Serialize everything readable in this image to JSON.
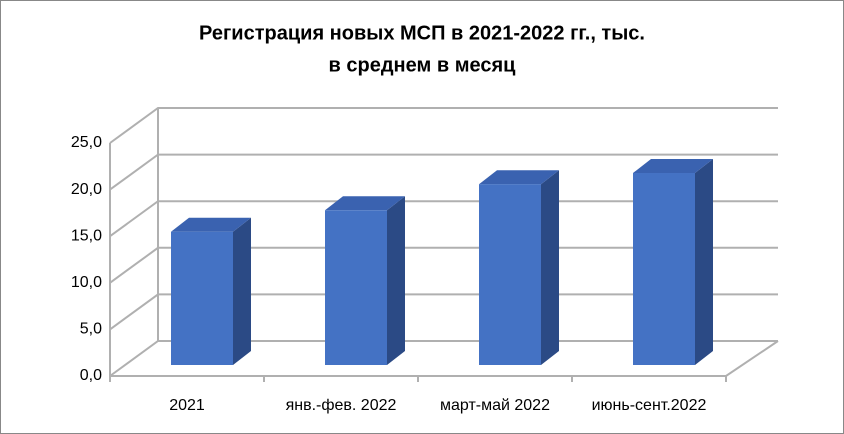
{
  "chart_data": {
    "type": "bar3d",
    "title": [
      "Регистрация новых МСП в 2021-2022 гг., тыс.",
      "в среднем в месяц"
    ],
    "categories": [
      "2021",
      "янв.-фев. 2022",
      "март-май 2022",
      "июнь-сент.2022"
    ],
    "values": [
      14.3,
      16.6,
      19.4,
      20.6
    ],
    "color": "#4472c4",
    "ylim": [
      0,
      25
    ],
    "yticks": [
      {
        "value": 0,
        "label": "0,0"
      },
      {
        "value": 5,
        "label": "5,0"
      },
      {
        "value": 10,
        "label": "10,0"
      },
      {
        "value": 15,
        "label": "15,0"
      },
      {
        "value": 20,
        "label": "20,0"
      },
      {
        "value": 25,
        "label": "25,0"
      }
    ],
    "grid": true
  }
}
